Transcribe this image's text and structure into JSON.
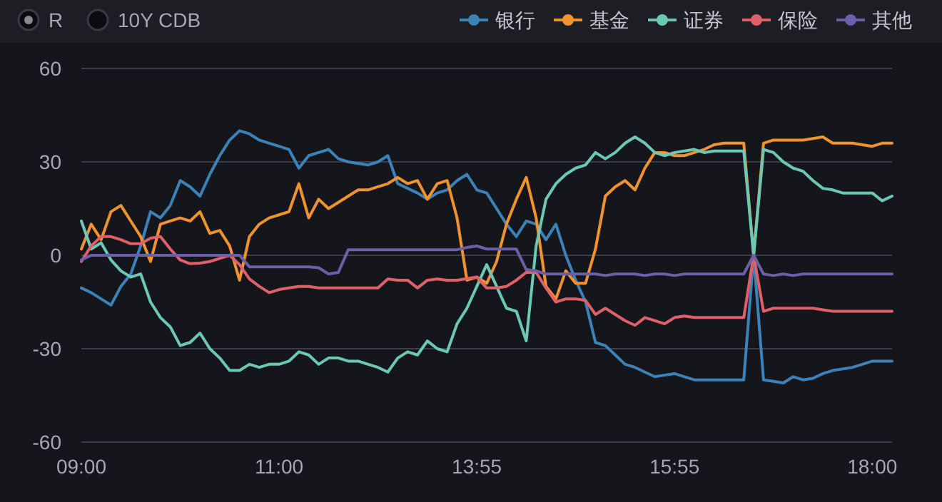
{
  "chart_data": {
    "type": "line",
    "categories": [
      "09:00",
      null,
      null,
      null,
      null,
      null,
      null,
      null,
      null,
      null,
      null,
      null,
      null,
      null,
      null,
      null,
      null,
      null,
      null,
      null,
      "11:00",
      null,
      null,
      null,
      null,
      null,
      null,
      null,
      null,
      null,
      null,
      null,
      null,
      null,
      null,
      null,
      null,
      null,
      null,
      null,
      "13:55",
      null,
      null,
      null,
      null,
      null,
      null,
      null,
      null,
      null,
      null,
      null,
      null,
      null,
      null,
      null,
      null,
      null,
      null,
      null,
      "15:55",
      null,
      null,
      null,
      null,
      null,
      null,
      null,
      null,
      null,
      null,
      null,
      null,
      null,
      null,
      null,
      null,
      null,
      null,
      null,
      "18:00",
      null,
      null
    ],
    "series": [
      {
        "name": "银行",
        "color": "#3a82b8",
        "values": [
          -10.5,
          -12,
          -14,
          -16,
          -10,
          -6,
          3,
          14,
          12,
          16,
          24,
          22,
          19,
          26,
          32,
          37,
          40,
          39,
          37,
          36,
          35,
          34,
          28,
          32,
          33,
          34,
          31,
          30,
          29.5,
          29,
          30,
          32,
          23,
          21.5,
          20,
          18,
          20,
          21,
          24,
          26,
          21,
          20,
          15,
          10,
          6,
          11,
          10,
          5,
          10,
          0,
          -8,
          -15,
          -28,
          -29,
          -32,
          -35,
          -36,
          -37.5,
          -39,
          -38.5,
          -38,
          -39,
          -40,
          -40,
          -40,
          -40,
          -40,
          -40,
          0,
          -40,
          -40.5,
          -41,
          -39,
          -40,
          -39.5,
          -38,
          -37,
          -36.5,
          -36,
          -35,
          -34,
          -34,
          -34
        ]
      },
      {
        "name": "基金",
        "color": "#f0922e",
        "values": [
          2,
          10,
          5,
          14,
          16,
          11,
          6,
          -2,
          10,
          11,
          12,
          11,
          14,
          7,
          8,
          3,
          -8,
          6,
          10,
          12,
          13,
          14,
          23,
          12,
          18,
          15,
          17,
          19,
          21,
          21,
          22,
          23,
          25,
          23,
          24,
          18,
          23,
          24,
          12,
          -8,
          -7,
          -9,
          -2,
          10,
          18,
          25,
          12,
          -10,
          -14,
          -5,
          -9,
          -9,
          2,
          19,
          22,
          24,
          21,
          28,
          33,
          33,
          32,
          32,
          33,
          34,
          35.5,
          36,
          36,
          36,
          0,
          36,
          37,
          37,
          37,
          37,
          37.5,
          38,
          36,
          36,
          36,
          35.5,
          35,
          36,
          36
        ]
      },
      {
        "name": "证券",
        "color": "#6cc8b6",
        "values": [
          11,
          2,
          4,
          -1.5,
          -5,
          -7,
          -6,
          -15,
          -20,
          -23,
          -29,
          -28,
          -25,
          -30,
          -33,
          -37,
          -37,
          -35,
          -36,
          -35,
          -35,
          -34,
          -31,
          -32,
          -35,
          -33,
          -33,
          -34,
          -34,
          -35,
          -36,
          -37.5,
          -33,
          -31,
          -32,
          -27.5,
          -30,
          -31,
          -22,
          -17,
          -10,
          -3,
          -10,
          -17,
          -18,
          -27.5,
          3,
          18,
          23,
          26,
          28,
          29,
          33,
          31,
          33,
          36,
          38,
          36,
          33,
          32,
          33,
          33.5,
          34,
          33,
          33.5,
          33.5,
          33.5,
          33.5,
          0,
          34,
          33,
          30,
          28,
          27,
          24,
          21.5,
          21,
          20,
          20,
          20,
          20,
          17.5,
          19
        ]
      },
      {
        "name": "保险",
        "color": "#e0606a",
        "values": [
          -2,
          3,
          6,
          6,
          5,
          3.7,
          3.7,
          5.5,
          6,
          2,
          -1.5,
          -2.7,
          -2.5,
          -2,
          -1,
          0,
          -3,
          -7.6,
          -10,
          -12,
          -11,
          -10.5,
          -10,
          -10,
          -10.5,
          -10.5,
          -10.5,
          -10.5,
          -10.5,
          -10.5,
          -10.5,
          -7.6,
          -8,
          -8,
          -10.5,
          -8,
          -7.6,
          -8,
          -8,
          -7.5,
          -7,
          -10.5,
          -10.5,
          -10,
          -8,
          -5.5,
          -5.5,
          -10.5,
          -15,
          -14,
          -14,
          -14.5,
          -19,
          -17,
          -19,
          -21,
          -22.5,
          -20,
          -21,
          -22,
          -20,
          -19.5,
          -20,
          -20,
          -20,
          -20,
          -20,
          -20,
          0,
          -18,
          -17,
          -17,
          -17,
          -17,
          -17,
          -17.5,
          -18,
          -18,
          -18,
          -18,
          -18,
          -18,
          -18
        ]
      },
      {
        "name": "其他",
        "color": "#6a5fa8",
        "values": [
          -1.5,
          0,
          0,
          0,
          0,
          0,
          0,
          0,
          0,
          0,
          0,
          0,
          0,
          0,
          0,
          0,
          0,
          -3.7,
          -3.7,
          -3.7,
          -3.7,
          -3.7,
          -3.7,
          -3.7,
          -4,
          -6,
          -5.5,
          1.8,
          1.8,
          1.8,
          1.8,
          1.8,
          1.8,
          1.8,
          1.8,
          1.8,
          1.8,
          1.8,
          1.8,
          2.5,
          3,
          2,
          2,
          2,
          2,
          -4.6,
          -5,
          -6,
          -6,
          -6,
          -6,
          -6,
          -6,
          -6.5,
          -6,
          -6,
          -6,
          -6.5,
          -6,
          -6,
          -6.5,
          -6,
          -6,
          -6,
          -6,
          -6,
          -6,
          -6,
          0,
          -6,
          -6.5,
          -6,
          -6.5,
          -6,
          -6,
          -6,
          -6,
          -6,
          -6,
          -6,
          -6,
          -6,
          -6
        ]
      }
    ],
    "ylim": [
      -60,
      60
    ],
    "yticks": [
      -60,
      -30,
      0,
      30,
      60
    ],
    "grid": "y",
    "legend": "top right",
    "annotations": [
      "R",
      "10Y CDB"
    ]
  }
}
